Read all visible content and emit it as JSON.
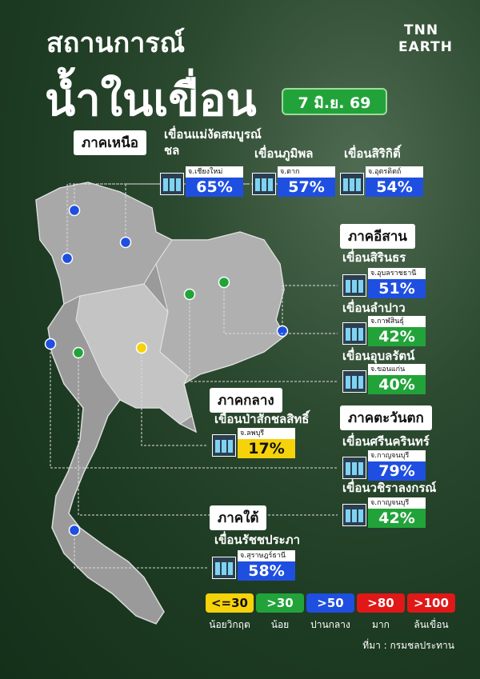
{
  "header": {
    "title_line1": "สถานการณ์",
    "title_line2": "น้ำในเขื่อน",
    "date": "7 มิ.ย. 69",
    "brand_line1": "TNN",
    "brand_line2": "EARTH"
  },
  "regions": [
    {
      "name": "ภาคเหนือ",
      "dams": [
        {
          "name": "เขื่อนแม่งัดสมบูรณ์ชล",
          "province": "จ.เชียงใหม่",
          "percent": "65%",
          "color": "#1f4fe0"
        },
        {
          "name": "เขื่อนภูมิพล",
          "province": "จ.ตาก",
          "percent": "57%",
          "color": "#1f4fe0"
        },
        {
          "name": "เขื่อนสิริกิติ์",
          "province": "จ.อุตรดิตถ์",
          "percent": "54%",
          "color": "#1f4fe0"
        }
      ]
    },
    {
      "name": "ภาคอีสาน",
      "dams": [
        {
          "name": "เขื่อนสิรินธร",
          "province": "จ.อุบลราชธานี",
          "percent": "51%",
          "color": "#1f4fe0"
        },
        {
          "name": "เขื่อนลำปาว",
          "province": "จ.กาฬสินธุ์",
          "percent": "42%",
          "color": "#22a33a"
        },
        {
          "name": "เขื่อนอุบลรัตน์",
          "province": "จ.ขอนแก่น",
          "percent": "40%",
          "color": "#22a33a"
        }
      ]
    },
    {
      "name": "ภาคกลาง",
      "dams": [
        {
          "name": "เขื่อนป่าสักชลสิทธิ์",
          "province": "จ.ลพบุรี",
          "percent": "17%",
          "color": "#f5d20a"
        }
      ]
    },
    {
      "name": "ภาคตะวันตก",
      "dams": [
        {
          "name": "เขื่อนศรีนครินทร์",
          "province": "จ.กาญจนบุรี",
          "percent": "79%",
          "color": "#1f4fe0"
        },
        {
          "name": "เขื่อนวชิราลงกรณ์",
          "province": "จ.กาญจนบุรี",
          "percent": "42%",
          "color": "#22a33a"
        }
      ]
    },
    {
      "name": "ภาคใต้",
      "dams": [
        {
          "name": "เขื่อนรัชชประภา",
          "province": "จ.สุราษฎร์ธานี",
          "percent": "58%",
          "color": "#1f4fe0"
        }
      ]
    }
  ],
  "legend": [
    {
      "label": "<=30",
      "description": "น้อยวิกฤต",
      "color": "#f5d20a"
    },
    {
      "label": ">30",
      "description": "น้อย",
      "color": "#22a33a"
    },
    {
      "label": ">50",
      "description": "ปานกลาง",
      "color": "#1f4fe0"
    },
    {
      "label": ">80",
      "description": "มาก",
      "color": "#e01818"
    },
    {
      "label": ">100",
      "description": "ล้นเขื่อน",
      "color": "#e01818"
    }
  ],
  "source": "ที่มา : กรมชลประทาน"
}
